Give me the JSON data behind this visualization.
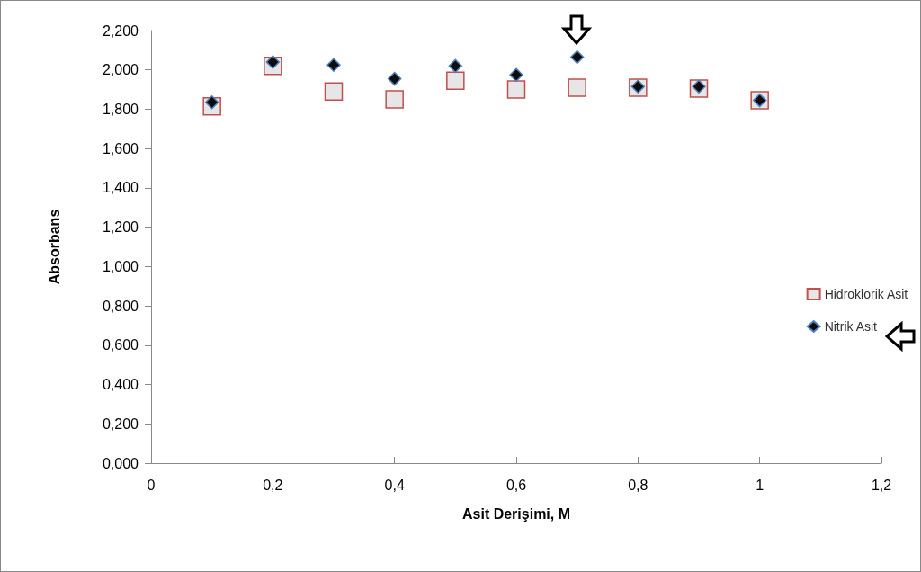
{
  "chart_data": {
    "type": "scatter",
    "xlabel": "Asit Derişimi, M",
    "ylabel": "Absorbans",
    "xlim": [
      0,
      1.2
    ],
    "xticks": [
      0,
      {
        "value": 0.2,
        "label": "0,2"
      },
      {
        "value": 0.4,
        "label": "0,4"
      },
      {
        "value": 0.6,
        "label": "0,6"
      },
      {
        "value": 0.8,
        "label": "0,8"
      },
      1,
      {
        "value": 1.2,
        "label": "1,2"
      }
    ],
    "ylim": [
      0,
      2.2
    ],
    "yticks": [
      {
        "value": 0,
        "label": "0,000"
      },
      {
        "value": 0.2,
        "label": "0,200"
      },
      {
        "value": 0.4,
        "label": "0,400"
      },
      {
        "value": 0.6,
        "label": "0,600"
      },
      {
        "value": 0.8,
        "label": "0,800"
      },
      {
        "value": 1,
        "label": "1,000"
      },
      {
        "value": 1.2,
        "label": "1,200"
      },
      {
        "value": 1.4,
        "label": "1,400"
      },
      {
        "value": 1.6,
        "label": "1,600"
      },
      {
        "value": 1.8,
        "label": "1,800"
      },
      {
        "value": 2,
        "label": "2,000"
      },
      {
        "value": 2.2,
        "label": "2,200"
      }
    ],
    "x": [
      0.1,
      0.2,
      0.3,
      0.4,
      0.5,
      0.6,
      0.7,
      0.8,
      0.9,
      1
    ],
    "series": [
      {
        "name": "Hidroklorik Asit",
        "color": "#e6e6e6",
        "marker": "square",
        "values": [
          1.815,
          2.02,
          1.89,
          1.85,
          1.945,
          1.9,
          1.91,
          1.91,
          1.905,
          1.845
        ]
      },
      {
        "name": "Nitrik Asit",
        "color": "#0d0d0d",
        "marker": "diamond",
        "values": [
          1.835,
          2.04,
          2.025,
          1.955,
          2.02,
          1.975,
          2.065,
          1.915,
          1.915,
          1.845
        ]
      }
    ],
    "grid": false,
    "legend": "right"
  }
}
